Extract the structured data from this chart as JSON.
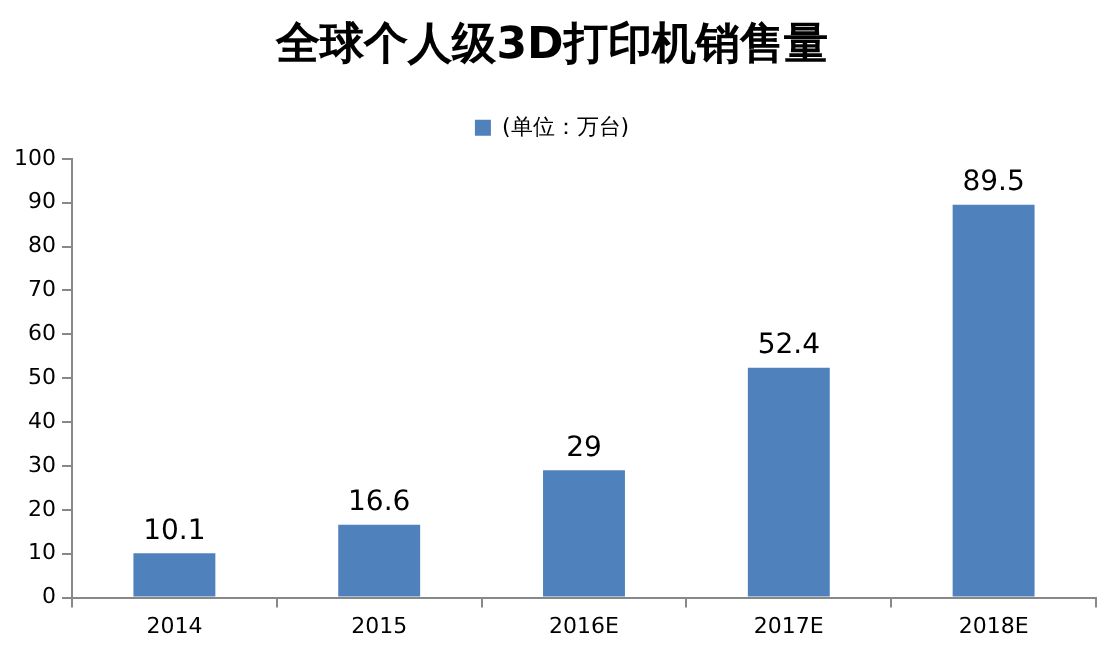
{
  "chart_data": {
    "type": "bar",
    "title": "全球个人级3D打印机销售量",
    "categories": [
      "2014",
      "2015",
      "2016E",
      "2017E",
      "2018E"
    ],
    "series": [
      {
        "name": "(单位：万台)",
        "color": "#4f81bd",
        "values": [
          10.1,
          16.6,
          29,
          52.4,
          89.5
        ]
      }
    ],
    "ylim": [
      0,
      100
    ],
    "yticks": [
      0,
      10,
      20,
      30,
      40,
      50,
      60,
      70,
      80,
      90,
      100
    ],
    "grid": false,
    "legend": "top",
    "data_labels": true
  }
}
